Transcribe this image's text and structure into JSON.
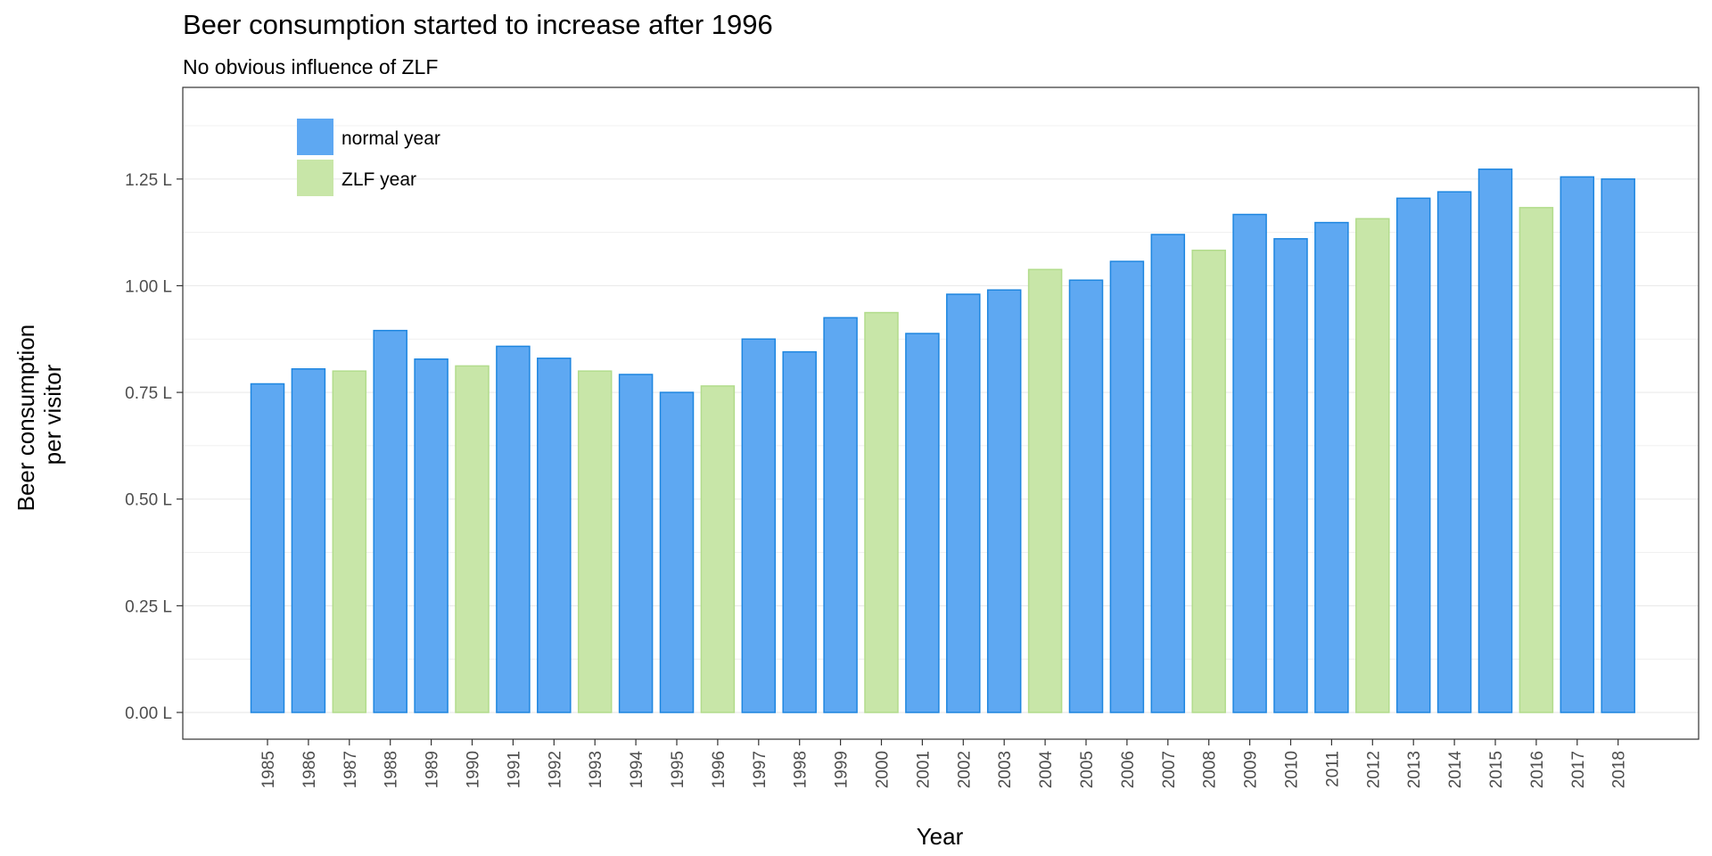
{
  "chart_data": {
    "type": "bar",
    "title": "Beer consumption started to increase after 1996",
    "subtitle": "No obvious influence of ZLF",
    "xlabel": "Year",
    "ylabel_lines": [
      "Beer consumption",
      "per visitor"
    ],
    "ylim": [
      0,
      1.4
    ],
    "yticks": [
      0,
      0.25,
      0.5,
      0.75,
      1.0,
      1.25
    ],
    "ytick_labels": [
      "0.00 L",
      "0.25 L",
      "0.50 L",
      "0.75 L",
      "1.00 L",
      "1.25 L"
    ],
    "grid": true,
    "legend": {
      "position": "top-left inside",
      "items": [
        {
          "label": "normal year",
          "group": "normal"
        },
        {
          "label": "ZLF year",
          "group": "zlf"
        }
      ]
    },
    "colors": {
      "normal_fill": "#5ea8f2",
      "normal_stroke": "#1e86e0",
      "zlf_fill": "#c8e6a8",
      "zlf_stroke": "#b2dc8c",
      "grid": "#ebebeb",
      "panel_border": "#333333",
      "tick_text": "#4d4d4d"
    },
    "categories": [
      "1985",
      "1986",
      "1987",
      "1988",
      "1989",
      "1990",
      "1991",
      "1992",
      "1993",
      "1994",
      "1995",
      "1996",
      "1997",
      "1998",
      "1999",
      "2000",
      "2001",
      "2002",
      "2003",
      "2004",
      "2005",
      "2006",
      "2007",
      "2008",
      "2009",
      "2010",
      "2011",
      "2012",
      "2013",
      "2014",
      "2015",
      "2016",
      "2017",
      "2018"
    ],
    "values": [
      0.77,
      0.805,
      0.8,
      0.895,
      0.828,
      0.812,
      0.858,
      0.83,
      0.8,
      0.792,
      0.75,
      0.765,
      0.875,
      0.845,
      0.925,
      0.937,
      0.888,
      0.98,
      0.99,
      1.038,
      1.013,
      1.057,
      1.12,
      1.083,
      1.167,
      1.11,
      1.148,
      1.157,
      1.205,
      1.22,
      1.273,
      1.183,
      1.255,
      1.25
    ],
    "groups": [
      "normal",
      "normal",
      "zlf",
      "normal",
      "normal",
      "zlf",
      "normal",
      "normal",
      "zlf",
      "normal",
      "normal",
      "zlf",
      "normal",
      "normal",
      "normal",
      "zlf",
      "normal",
      "normal",
      "normal",
      "zlf",
      "normal",
      "normal",
      "normal",
      "zlf",
      "normal",
      "normal",
      "normal",
      "zlf",
      "normal",
      "normal",
      "normal",
      "zlf",
      "normal",
      "normal"
    ]
  }
}
